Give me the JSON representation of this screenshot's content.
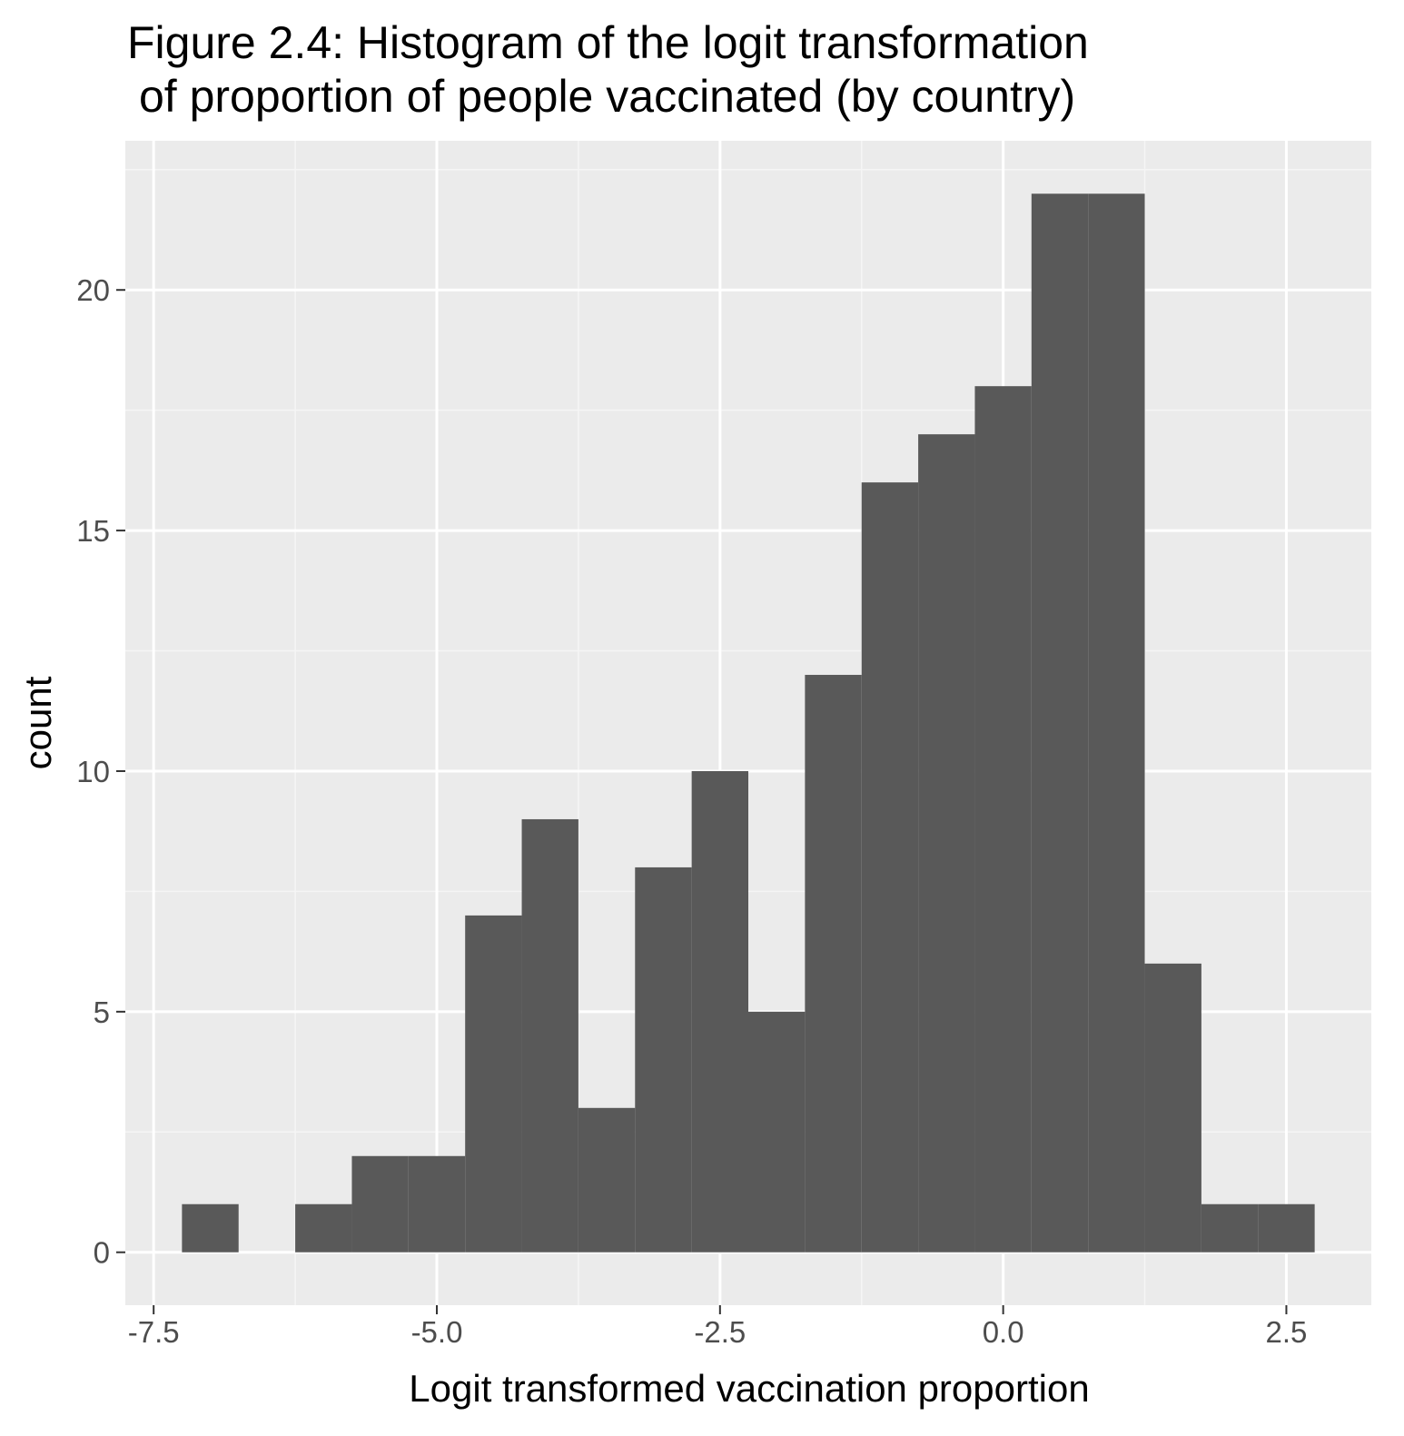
{
  "chart_data": {
    "type": "bar",
    "title": [
      "Figure 2.4: Histogram of the logit transformation",
      "of proportion of people vaccinated (by country)"
    ],
    "xlabel": "Logit transformed vaccination proportion",
    "ylabel": "count",
    "x_ticks": [
      "-7.5",
      "-5.0",
      "-2.5",
      "0.0",
      "2.5"
    ],
    "y_ticks": [
      "0",
      "5",
      "10",
      "15",
      "20"
    ],
    "xlim": [
      -7.75,
      3.25
    ],
    "ylim": [
      -1.1,
      23.1
    ],
    "grid": true,
    "bin_width": 0.5,
    "bins": [
      {
        "x_start": -7.25,
        "x_end": -6.75,
        "count": 1
      },
      {
        "x_start": -6.75,
        "x_end": -6.25,
        "count": 0
      },
      {
        "x_start": -6.25,
        "x_end": -5.75,
        "count": 1
      },
      {
        "x_start": -5.75,
        "x_end": -5.25,
        "count": 2
      },
      {
        "x_start": -5.25,
        "x_end": -4.75,
        "count": 2
      },
      {
        "x_start": -4.75,
        "x_end": -4.25,
        "count": 7
      },
      {
        "x_start": -4.25,
        "x_end": -3.75,
        "count": 9
      },
      {
        "x_start": -3.75,
        "x_end": -3.25,
        "count": 3
      },
      {
        "x_start": -3.25,
        "x_end": -2.75,
        "count": 8
      },
      {
        "x_start": -2.75,
        "x_end": -2.25,
        "count": 10
      },
      {
        "x_start": -2.25,
        "x_end": -1.75,
        "count": 5
      },
      {
        "x_start": -1.75,
        "x_end": -1.25,
        "count": 12
      },
      {
        "x_start": -1.25,
        "x_end": -0.75,
        "count": 16
      },
      {
        "x_start": -0.75,
        "x_end": -0.25,
        "count": 17
      },
      {
        "x_start": -0.25,
        "x_end": 0.25,
        "count": 18
      },
      {
        "x_start": 0.25,
        "x_end": 0.75,
        "count": 22
      },
      {
        "x_start": 0.75,
        "x_end": 1.25,
        "count": 22
      },
      {
        "x_start": 1.25,
        "x_end": 1.75,
        "count": 6
      },
      {
        "x_start": 1.75,
        "x_end": 2.25,
        "count": 1
      },
      {
        "x_start": 2.25,
        "x_end": 2.75,
        "count": 1
      }
    ]
  },
  "colors": {
    "panel_background": "#ebebeb",
    "grid_major": "#ffffff",
    "grid_minor": "#f5f5f5",
    "bar_fill": "#595959",
    "tick_mark": "#333333",
    "tick_text": "#4d4d4d",
    "text": "#000000"
  }
}
